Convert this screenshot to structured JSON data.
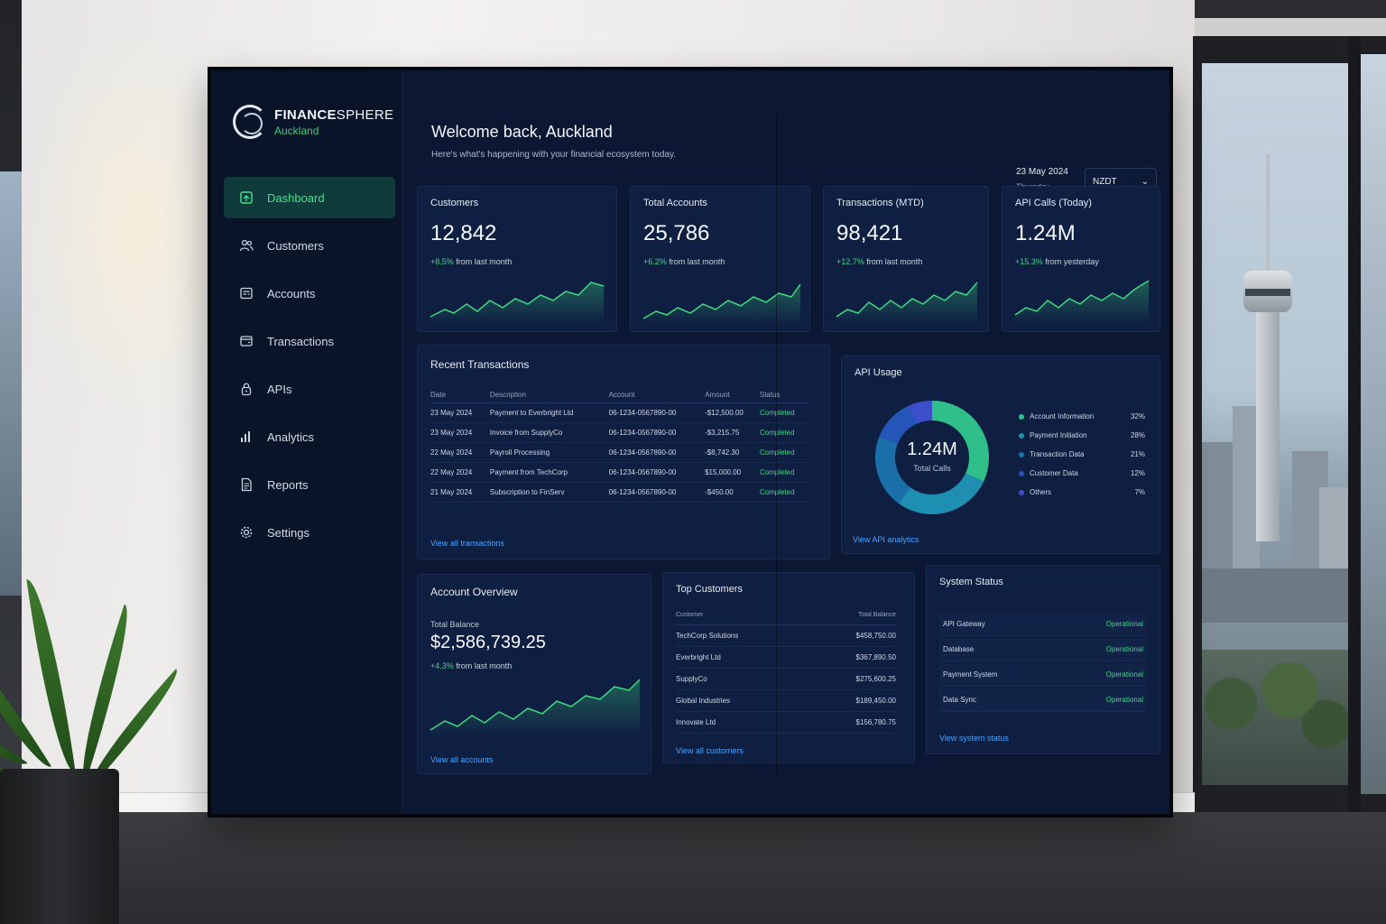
{
  "brand": {
    "name_bold": "FINANCE",
    "name_thin": "SPHERE",
    "city": "Auckland"
  },
  "nav": {
    "items": [
      {
        "label": "Dashboard",
        "icon": "home-icon",
        "active": true
      },
      {
        "label": "Customers",
        "icon": "users-icon"
      },
      {
        "label": "Accounts",
        "icon": "account-card-icon"
      },
      {
        "label": "Transactions",
        "icon": "wallet-icon"
      },
      {
        "label": "APIs",
        "icon": "lock-icon"
      },
      {
        "label": "Analytics",
        "icon": "bar-chart-icon"
      },
      {
        "label": "Reports",
        "icon": "document-icon"
      },
      {
        "label": "Settings",
        "icon": "gear-icon"
      }
    ]
  },
  "header": {
    "welcome": "Welcome back, Auckland",
    "subtitle": "Here's what's happening with your financial ecosystem today.",
    "date": "23 May 2024",
    "weekday": "Thursday",
    "timezone": "NZDT"
  },
  "kpis": [
    {
      "title": "Customers",
      "value": "12,842",
      "delta": "+8.5%",
      "delta_text": "from last month"
    },
    {
      "title": "Total Accounts",
      "value": "25,786",
      "delta": "+6.2%",
      "delta_text": "from last month"
    },
    {
      "title": "Transactions (MTD)",
      "value": "98,421",
      "delta": "+12.7%",
      "delta_text": "from last month"
    },
    {
      "title": "API Calls (Today)",
      "value": "1.24M",
      "delta": "+15.3%",
      "delta_text": "from yesterday"
    }
  ],
  "recent_transactions": {
    "title": "Recent Transactions",
    "columns": [
      "Date",
      "Description",
      "Account",
      "Amount",
      "Status"
    ],
    "rows": [
      [
        "23 May 2024",
        "Payment to Everbright Ltd",
        "06-1234-0567890-00",
        "-$12,500.00",
        "Completed"
      ],
      [
        "23 May 2024",
        "Invoice from SupplyCo",
        "06-1234-0567890-00",
        "-$3,215.75",
        "Completed"
      ],
      [
        "22 May 2024",
        "Payroll Processing",
        "06-1234-0567890-00",
        "-$8,742.30",
        "Completed"
      ],
      [
        "22 May 2024",
        "Payment from TechCorp",
        "06-1234-0567890-00",
        "$15,000.00",
        "Completed"
      ],
      [
        "21 May 2024",
        "Subscription to FinServ",
        "06-1234-0567890-00",
        "-$450.00",
        "Completed"
      ]
    ],
    "link": "View all transactions"
  },
  "api_usage": {
    "title": "API Usage",
    "center_value": "1.24M",
    "center_caption": "Total Calls",
    "link": "View API analytics",
    "segments": [
      {
        "label": "Account Information",
        "pct": "32%",
        "value": 32,
        "color": "#2fbf8a"
      },
      {
        "label": "Payment Initiation",
        "pct": "28%",
        "value": 28,
        "color": "#1e8fb0"
      },
      {
        "label": "Transaction Data",
        "pct": "21%",
        "value": 21,
        "color": "#1a6fa8"
      },
      {
        "label": "Customer Data",
        "pct": "12%",
        "value": 12,
        "color": "#2356b8"
      },
      {
        "label": "Others",
        "pct": "7%",
        "value": 7,
        "color": "#3a4fc9"
      }
    ]
  },
  "account_overview": {
    "title": "Account Overview",
    "balance_label": "Total Balance",
    "balance": "$2,586,739.25",
    "delta": "+4.3%",
    "delta_text": "from last month",
    "link": "View all accounts"
  },
  "top_customers": {
    "title": "Top Customers",
    "col_customer": "Customer",
    "col_balance": "Total Balance",
    "rows": [
      [
        "TechCorp Solutions",
        "$458,750.00"
      ],
      [
        "Everbright Ltd",
        "$367,890.50"
      ],
      [
        "SupplyCo",
        "$275,600.25"
      ],
      [
        "Global Industries",
        "$189,450.00"
      ],
      [
        "Innovate Ltd",
        "$156,780.75"
      ]
    ],
    "link": "View all customers"
  },
  "system_status": {
    "title": "System Status",
    "rows": [
      [
        "API Gateway",
        "Operational"
      ],
      [
        "Database",
        "Operational"
      ],
      [
        "Payment System",
        "Operational"
      ],
      [
        "Data Sync",
        "Operational"
      ]
    ],
    "link": "View system status"
  },
  "colors": {
    "accent_green": "#3fd77f",
    "link_blue": "#4ba3ff",
    "panel": "#0f1f42"
  }
}
